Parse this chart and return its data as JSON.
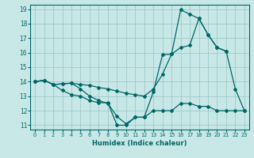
{
  "xlabel": "Humidex (Indice chaleur)",
  "bg_color": "#c8e8e8",
  "line_color": "#006666",
  "grid_color": "#a0c8c8",
  "xlim": [
    -0.5,
    23.5
  ],
  "ylim": [
    10.7,
    19.3
  ],
  "xticks": [
    0,
    1,
    2,
    3,
    4,
    5,
    6,
    7,
    8,
    9,
    10,
    11,
    12,
    13,
    14,
    15,
    16,
    17,
    18,
    19,
    20,
    21,
    22,
    23
  ],
  "yticks": [
    11,
    12,
    13,
    14,
    15,
    16,
    17,
    18,
    19
  ],
  "line1_x": [
    0,
    1,
    2,
    3,
    4,
    5,
    6,
    7,
    8,
    9,
    10,
    11,
    12,
    13,
    14,
    15,
    16,
    17,
    18,
    19,
    20,
    21,
    22,
    23
  ],
  "line1_y": [
    14.0,
    14.1,
    13.8,
    13.85,
    13.9,
    13.5,
    13.0,
    12.7,
    12.5,
    11.6,
    11.1,
    11.55,
    11.55,
    13.3,
    15.85,
    15.9,
    18.95,
    18.65,
    18.35,
    17.25,
    16.35,
    16.1,
    13.5,
    12.0
  ],
  "line2_x": [
    0,
    1,
    2,
    3,
    4,
    5,
    6,
    7,
    8,
    9,
    10,
    11,
    12,
    13,
    14,
    15,
    16,
    17,
    18,
    19,
    20,
    21
  ],
  "line2_y": [
    14.0,
    14.1,
    13.8,
    13.85,
    13.9,
    13.8,
    13.75,
    13.6,
    13.5,
    13.35,
    13.2,
    13.1,
    13.0,
    13.5,
    14.5,
    15.9,
    16.35,
    16.5,
    18.35,
    17.25,
    16.35,
    16.1
  ],
  "line3_x": [
    0,
    1,
    2,
    3,
    4,
    5,
    6,
    7,
    8,
    9,
    10,
    11,
    12,
    13,
    14,
    15,
    16,
    17,
    18,
    19,
    20,
    21,
    22,
    23
  ],
  "line3_y": [
    14.0,
    14.1,
    13.8,
    13.4,
    13.1,
    13.0,
    12.7,
    12.55,
    12.55,
    11.0,
    11.0,
    11.55,
    11.55,
    12.0,
    12.0,
    12.0,
    12.5,
    12.5,
    12.3,
    12.3,
    12.0,
    12.0,
    12.0,
    12.0
  ]
}
